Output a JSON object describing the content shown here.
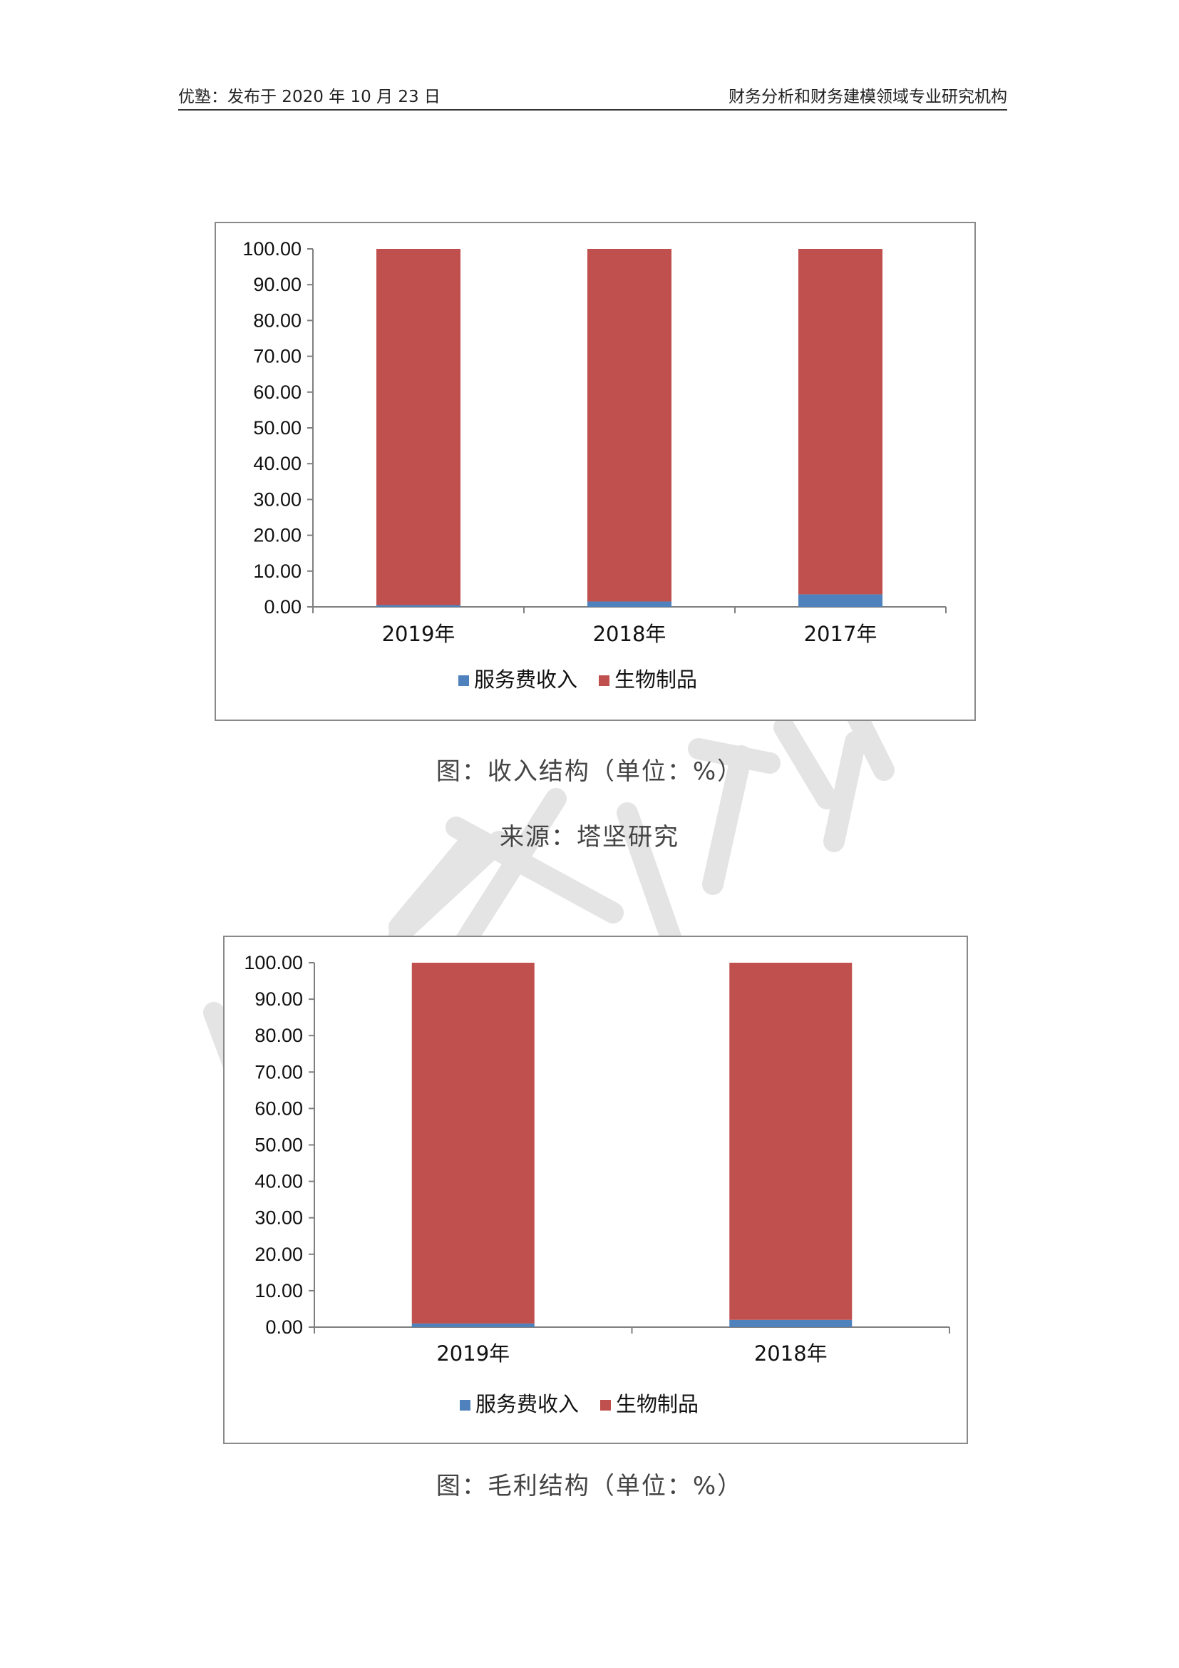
{
  "header": {
    "left": "优塾：发布于 2020 年 10 月 23 日",
    "right": "财务分析和财务建模领域专业研究机构"
  },
  "captions": {
    "chart1": "图：收入结构（单位：%）",
    "source1": "来源：塔坚研究",
    "chart2": "图：毛利结构（单位：%）"
  },
  "colors": {
    "service": "#4f81bd",
    "bio": "#c0504d",
    "axis": "#7f7f7f",
    "watermark": "#d9d9d9"
  },
  "chart_data": [
    {
      "type": "bar",
      "stacked": true,
      "categories": [
        "2019年",
        "2018年",
        "2017年"
      ],
      "series": [
        {
          "name": "服务费收入",
          "values": [
            0.5,
            1.5,
            3.5
          ]
        },
        {
          "name": "生物制品",
          "values": [
            99.5,
            98.5,
            96.5
          ]
        }
      ],
      "ylim": [
        0,
        100
      ],
      "yticks": [
        "0.00",
        "10.00",
        "20.00",
        "30.00",
        "40.00",
        "50.00",
        "60.00",
        "70.00",
        "80.00",
        "90.00",
        "100.00"
      ],
      "legend": "bottom"
    },
    {
      "type": "bar",
      "stacked": true,
      "categories": [
        "2019年",
        "2018年"
      ],
      "series": [
        {
          "name": "服务费收入",
          "values": [
            1.0,
            2.0
          ]
        },
        {
          "name": "生物制品",
          "values": [
            99.0,
            98.0
          ]
        }
      ],
      "ylim": [
        0,
        100
      ],
      "yticks": [
        "0.00",
        "10.00",
        "20.00",
        "30.00",
        "40.00",
        "50.00",
        "60.00",
        "70.00",
        "80.00",
        "90.00",
        "100.00"
      ],
      "legend": "bottom"
    }
  ]
}
